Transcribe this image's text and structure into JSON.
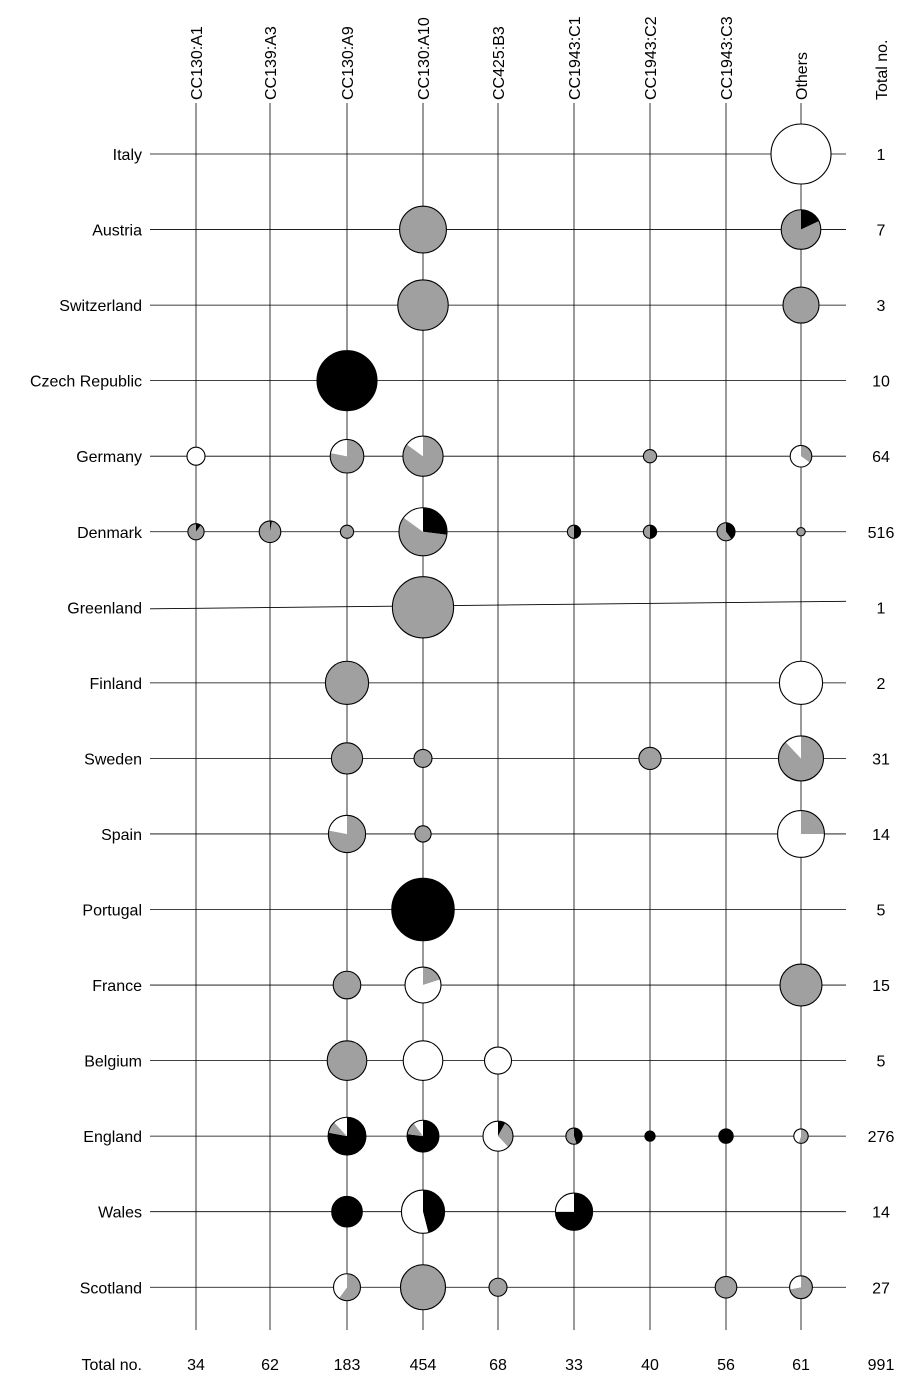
{
  "chart_data": {
    "type": "pie-bubble-matrix",
    "column_labels": [
      "CC130:A1",
      "CC139:A3",
      "CC130:A9",
      "CC130:A10",
      "CC425:B3",
      "CC1943:C1",
      "CC1943:C2",
      "CC1943:C3",
      "Others"
    ],
    "column_totals_label": "Total no.",
    "column_totals": [
      "34",
      "62",
      "183",
      "454",
      "68",
      "33",
      "40",
      "56",
      "61"
    ],
    "row_totals_label": "Total no.",
    "grand_total": "991",
    "colors": {
      "gray": "#a0a0a0",
      "black": "#000000",
      "white": "#ffffff"
    },
    "rows": [
      {
        "label": "Italy",
        "total": "1",
        "cells": [
          {
            "col": 8,
            "size": 1.0,
            "gray": 0,
            "black": 0,
            "white": 1
          }
        ]
      },
      {
        "label": "Austria",
        "total": "7",
        "cells": [
          {
            "col": 3,
            "size": 0.78,
            "gray": 1,
            "black": 0,
            "white": 0
          },
          {
            "col": 8,
            "size": 0.66,
            "gray": 0.82,
            "black": 0.18,
            "white": 0
          }
        ]
      },
      {
        "label": "Switzerland",
        "total": "3",
        "cells": [
          {
            "col": 3,
            "size": 0.84,
            "gray": 1,
            "black": 0,
            "white": 0
          },
          {
            "col": 8,
            "size": 0.6,
            "gray": 1,
            "black": 0,
            "white": 0
          }
        ]
      },
      {
        "label": "Czech Republic",
        "total": "10",
        "cells": [
          {
            "col": 2,
            "size": 1.0,
            "gray": 0,
            "black": 1,
            "white": 0
          }
        ]
      },
      {
        "label": "Germany",
        "total": "64",
        "cells": [
          {
            "col": 0,
            "size": 0.3,
            "gray": 0,
            "black": 0,
            "white": 1
          },
          {
            "col": 2,
            "size": 0.56,
            "gray": 0.78,
            "black": 0,
            "white": 0.22
          },
          {
            "col": 3,
            "size": 0.67,
            "gray": 0.85,
            "black": 0,
            "white": 0.15
          },
          {
            "col": 6,
            "size": 0.22,
            "gray": 1,
            "black": 0,
            "white": 0
          },
          {
            "col": 8,
            "size": 0.36,
            "gray": 0.35,
            "black": 0,
            "white": 0.65
          }
        ]
      },
      {
        "label": "Denmark",
        "total": "516",
        "cells": [
          {
            "col": 0,
            "size": 0.27,
            "gray": 0.9,
            "black": 0.1,
            "white": 0
          },
          {
            "col": 1,
            "size": 0.36,
            "gray": 0.97,
            "black": 0.03,
            "white": 0
          },
          {
            "col": 2,
            "size": 0.22,
            "gray": 1,
            "black": 0,
            "white": 0
          },
          {
            "col": 3,
            "size": 0.8,
            "gray": 0.58,
            "black": 0.27,
            "white": 0.15
          },
          {
            "col": 5,
            "size": 0.22,
            "gray": 0.5,
            "black": 0.5,
            "white": 0
          },
          {
            "col": 6,
            "size": 0.22,
            "gray": 0.5,
            "black": 0.5,
            "white": 0
          },
          {
            "col": 7,
            "size": 0.3,
            "gray": 0.6,
            "black": 0.4,
            "white": 0
          },
          {
            "col": 8,
            "size": 0.14,
            "gray": 1,
            "black": 0,
            "white": 0
          }
        ]
      },
      {
        "label": "Greenland",
        "total": "1",
        "cells": [
          {
            "col": 3,
            "size": 1.02,
            "gray": 1,
            "black": 0,
            "white": 0
          }
        ]
      },
      {
        "label": "Finland",
        "total": "2",
        "cells": [
          {
            "col": 2,
            "size": 0.72,
            "gray": 1,
            "black": 0,
            "white": 0
          },
          {
            "col": 8,
            "size": 0.72,
            "gray": 0,
            "black": 0,
            "white": 1
          }
        ]
      },
      {
        "label": "Sweden",
        "total": "31",
        "cells": [
          {
            "col": 2,
            "size": 0.52,
            "gray": 1,
            "black": 0,
            "white": 0
          },
          {
            "col": 3,
            "size": 0.3,
            "gray": 1,
            "black": 0,
            "white": 0
          },
          {
            "col": 6,
            "size": 0.37,
            "gray": 1,
            "black": 0,
            "white": 0
          },
          {
            "col": 8,
            "size": 0.75,
            "gray": 0.88,
            "black": 0,
            "white": 0.12
          }
        ]
      },
      {
        "label": "Spain",
        "total": "14",
        "cells": [
          {
            "col": 2,
            "size": 0.62,
            "gray": 0.78,
            "black": 0,
            "white": 0.22
          },
          {
            "col": 3,
            "size": 0.27,
            "gray": 1,
            "black": 0,
            "white": 0
          },
          {
            "col": 8,
            "size": 0.78,
            "gray": 0.25,
            "black": 0,
            "white": 0.75
          }
        ]
      },
      {
        "label": "Portugal",
        "total": "5",
        "cells": [
          {
            "col": 3,
            "size": 1.04,
            "gray": 0,
            "black": 1,
            "white": 0
          }
        ]
      },
      {
        "label": "France",
        "total": "15",
        "cells": [
          {
            "col": 2,
            "size": 0.46,
            "gray": 1,
            "black": 0,
            "white": 0
          },
          {
            "col": 3,
            "size": 0.6,
            "gray": 0.2,
            "black": 0,
            "white": 0.8
          },
          {
            "col": 8,
            "size": 0.7,
            "gray": 1,
            "black": 0,
            "white": 0
          }
        ]
      },
      {
        "label": "Belgium",
        "total": "5",
        "cells": [
          {
            "col": 2,
            "size": 0.66,
            "gray": 1,
            "black": 0,
            "white": 0
          },
          {
            "col": 3,
            "size": 0.66,
            "gray": 0,
            "black": 0,
            "white": 1
          },
          {
            "col": 4,
            "size": 0.45,
            "gray": 0,
            "black": 0,
            "white": 1
          }
        ]
      },
      {
        "label": "England",
        "total": "276",
        "cells": [
          {
            "col": 2,
            "size": 0.63,
            "gray": 0.1,
            "black": 0.78,
            "white": 0.12
          },
          {
            "col": 3,
            "size": 0.53,
            "gray": 0.13,
            "black": 0.77,
            "white": 0.1
          },
          {
            "col": 4,
            "size": 0.5,
            "gray": 0.3,
            "black": 0.08,
            "white": 0.62
          },
          {
            "col": 5,
            "size": 0.27,
            "gray": 0.55,
            "black": 0.45,
            "white": 0
          },
          {
            "col": 6,
            "size": 0.17,
            "gray": 0,
            "black": 1,
            "white": 0
          },
          {
            "col": 7,
            "size": 0.24,
            "gray": 0,
            "black": 1,
            "white": 0
          },
          {
            "col": 8,
            "size": 0.24,
            "gray": 0.55,
            "black": 0,
            "white": 0.45
          }
        ]
      },
      {
        "label": "Wales",
        "total": "14",
        "cells": [
          {
            "col": 2,
            "size": 0.51,
            "gray": 0,
            "black": 1,
            "white": 0
          },
          {
            "col": 3,
            "size": 0.72,
            "gray": 0,
            "black": 0.46,
            "white": 0.54
          },
          {
            "col": 5,
            "size": 0.62,
            "gray": 0,
            "black": 0.75,
            "white": 0.25
          }
        ]
      },
      {
        "label": "Scotland",
        "total": "27",
        "cells": [
          {
            "col": 2,
            "size": 0.45,
            "gray": 0.6,
            "black": 0,
            "white": 0.4
          },
          {
            "col": 3,
            "size": 0.75,
            "gray": 1,
            "black": 0,
            "white": 0
          },
          {
            "col": 4,
            "size": 0.3,
            "gray": 1,
            "black": 0,
            "white": 0
          },
          {
            "col": 7,
            "size": 0.36,
            "gray": 1,
            "black": 0,
            "white": 0
          },
          {
            "col": 8,
            "size": 0.38,
            "gray": 0.72,
            "black": 0,
            "white": 0.28
          }
        ]
      }
    ]
  }
}
